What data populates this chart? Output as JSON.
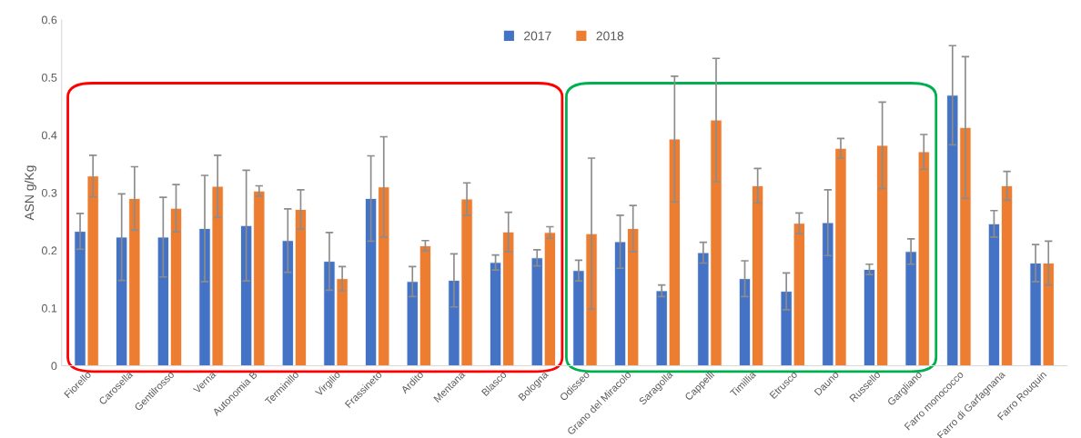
{
  "chart_data": {
    "type": "bar",
    "ylabel": "ASN g/Kg",
    "categories": [
      "Fiorello",
      "Carosella",
      "Gentilrosso",
      "Verna",
      "Autonomia B",
      "Terminillo",
      "Virgilio",
      "Frassineto",
      "Ardito",
      "Mentana",
      "Blasco",
      "Bologna",
      "Odisseo",
      "Grano del Miracolo",
      "Saragolla",
      "Cappelli",
      "Timillia",
      "Etrusco",
      "Dauno",
      "Russello",
      "Gargliano",
      "Farro monococco",
      "Farro di Garfagnana",
      "Farro Rouquin"
    ],
    "series": [
      {
        "name": "2017",
        "color": "#4472c4",
        "values": [
          0.233,
          0.223,
          0.223,
          0.238,
          0.243,
          0.217,
          0.181,
          0.29,
          0.146,
          0.148,
          0.179,
          0.187,
          0.165,
          0.215,
          0.13,
          0.196,
          0.151,
          0.129,
          0.248,
          0.167,
          0.198,
          0.469,
          0.246,
          0.178
        ],
        "errors": [
          0.031,
          0.075,
          0.069,
          0.092,
          0.096,
          0.055,
          0.05,
          0.074,
          0.026,
          0.046,
          0.013,
          0.014,
          0.018,
          0.046,
          0.01,
          0.018,
          0.031,
          0.032,
          0.057,
          0.009,
          0.022,
          0.086,
          0.023,
          0.032
        ]
      },
      {
        "name": "2018",
        "color": "#ed7d31",
        "values": [
          0.329,
          0.29,
          0.273,
          0.311,
          0.303,
          0.271,
          0.151,
          0.31,
          0.208,
          0.289,
          0.232,
          0.231,
          0.229,
          0.238,
          0.393,
          0.426,
          0.312,
          0.247,
          0.377,
          0.382,
          0.371,
          0.413,
          0.312,
          0.178
        ],
        "errors": [
          0.036,
          0.055,
          0.041,
          0.054,
          0.009,
          0.034,
          0.021,
          0.087,
          0.009,
          0.028,
          0.034,
          0.01,
          0.131,
          0.04,
          0.109,
          0.107,
          0.03,
          0.018,
          0.017,
          0.075,
          0.03,
          0.123,
          0.025,
          0.038
        ]
      }
    ],
    "ylim": [
      0,
      0.6
    ],
    "yticks": [
      0,
      0.1,
      0.2,
      0.3,
      0.4,
      0.5,
      0.6
    ],
    "grid": false,
    "legend": "top"
  }
}
